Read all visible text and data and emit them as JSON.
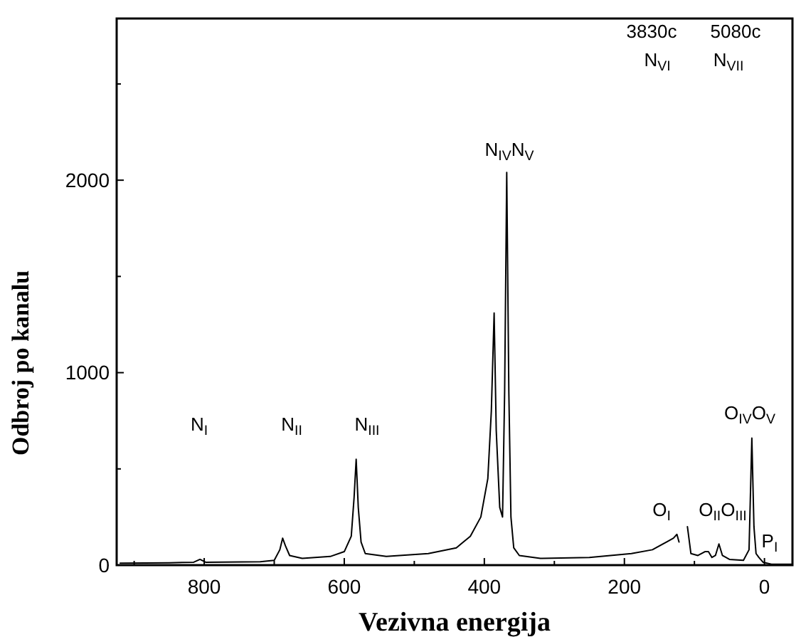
{
  "chart_data": {
    "type": "line",
    "xlabel": "Vezivna energija",
    "ylabel": "Odbroj po kanalu",
    "color": "#000000",
    "line_style": "solid",
    "marker": "none",
    "grid": false,
    "x": [
      920,
      850,
      815,
      806,
      798,
      720,
      700,
      692,
      688,
      684,
      678,
      660,
      620,
      600,
      590,
      586,
      583,
      580,
      576,
      570,
      540,
      480,
      440,
      420,
      405,
      395,
      390,
      386,
      383,
      378,
      374,
      371,
      368,
      365,
      362,
      358,
      350,
      320,
      250,
      190,
      160,
      140,
      130,
      125,
      122,
      119,
      114,
      110,
      105,
      95,
      85,
      80,
      75,
      70,
      65,
      60,
      50,
      30,
      22,
      18,
      15,
      12,
      8,
      2,
      -10,
      -40
    ],
    "values": [
      10,
      12,
      15,
      30,
      15,
      18,
      25,
      80,
      140,
      100,
      50,
      35,
      45,
      70,
      150,
      350,
      550,
      300,
      120,
      60,
      45,
      60,
      90,
      150,
      250,
      450,
      800,
      1310,
      700,
      300,
      250,
      900,
      2040,
      900,
      250,
      90,
      50,
      35,
      40,
      60,
      80,
      120,
      140,
      160,
      120,
      null,
      null,
      200,
      60,
      50,
      70,
      70,
      40,
      50,
      110,
      50,
      30,
      25,
      80,
      660,
      200,
      60,
      40,
      15,
      5,
      5
    ],
    "xlim": [
      925,
      -40
    ],
    "ylim": [
      0,
      2840
    ],
    "xticks": [
      {
        "value": 900,
        "label": null
      },
      800,
      {
        "value": 700,
        "label": null
      },
      600,
      {
        "value": 500,
        "label": null
      },
      400,
      {
        "value": 300,
        "label": null
      },
      200,
      {
        "value": 100,
        "label": null
      },
      0
    ],
    "yticks": [
      0,
      {
        "value": 500,
        "label": null
      },
      1000,
      {
        "value": 1500,
        "label": null
      },
      2000,
      {
        "value": 2500,
        "label": null
      }
    ],
    "annotations": [
      "N$_{I}$",
      "N$_{II}$",
      "N$_{III}$",
      "N$_{IV}$N$_{V}$",
      "3830c",
      "5080c",
      "N$_{VI}$",
      "N$_{VII}$",
      "O$_{I}$",
      "O$_{II}$O$_{III}$",
      "O$_{IV}$O$_{V}$",
      "P$_{I}$"
    ]
  }
}
